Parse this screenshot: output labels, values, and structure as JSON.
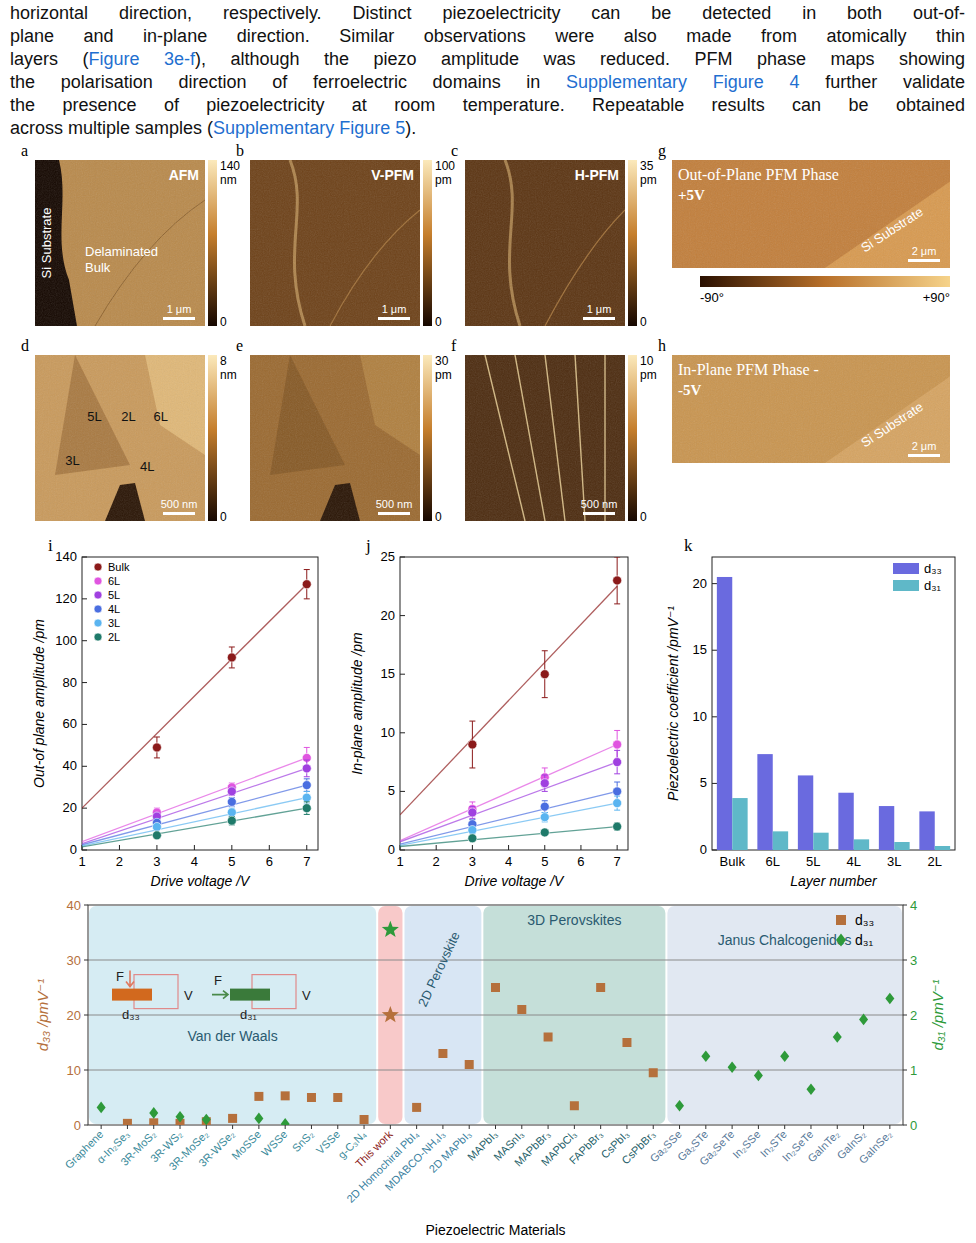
{
  "paragraph": {
    "lines": [
      [
        {
          "text": "horizontal direction, respectively. Distinct piezoelectricity can be detected in both out-of-"
        }
      ],
      [
        {
          "text": "plane and in-plane direction. Similar observations were also made from atomically thin"
        }
      ],
      [
        {
          "text": "layers ("
        },
        {
          "text": "Figure 3e-f",
          "link": true
        },
        {
          "text": "), although the piezo amplitude was reduced. PFM phase maps showing"
        }
      ],
      [
        {
          "text": "the polarisation direction of ferroelectric domains in "
        },
        {
          "text": "Supplementary Figure 4",
          "link": true
        },
        {
          "text": " further validate"
        }
      ],
      [
        {
          "text": "the presence of piezoelectricity at room temperature. Repeatable results can be obtained"
        }
      ],
      [
        {
          "text": "across multiple samples ("
        },
        {
          "text": "Supplementary Figure 5",
          "link": true
        },
        {
          "text": ")."
        }
      ]
    ]
  },
  "image_panels": [
    {
      "letter": "a",
      "title": "AFM",
      "labels": [
        "Si Substrate",
        "Delaminated Bulk"
      ],
      "colorbar": {
        "ticks": [
          0,
          140
        ],
        "unit": "nm"
      },
      "scale_bar": "1 μm"
    },
    {
      "letter": "b",
      "title": "V-PFM",
      "colorbar": {
        "ticks": [
          0,
          100
        ],
        "unit": "pm"
      },
      "scale_bar": "1 μm"
    },
    {
      "letter": "c",
      "title": "H-PFM",
      "colorbar": {
        "ticks": [
          0,
          35
        ],
        "unit": "pm"
      },
      "scale_bar": "1 μm"
    },
    {
      "letter": "d",
      "labels": [
        "5L",
        "2L",
        "6L",
        "3L",
        "4L"
      ],
      "colorbar": {
        "ticks": [
          0,
          8
        ],
        "unit": "nm"
      },
      "scale_bar": "500 nm"
    },
    {
      "letter": "e",
      "colorbar": {
        "ticks": [
          0,
          30
        ],
        "unit": "pm"
      },
      "scale_bar": "500 nm"
    },
    {
      "letter": "f",
      "colorbar": {
        "ticks": [
          0,
          10
        ],
        "unit": "pm"
      },
      "scale_bar": "500 nm"
    },
    {
      "letter": "g",
      "title": "Out-of-Plane PFM Phase",
      "subtitle": "+5V",
      "labels": [
        "Si Substrate"
      ],
      "scale_bar": "2 μm"
    },
    {
      "letter": "h",
      "title": "In-Plane PFM Phase -",
      "subtitle": "-5V",
      "labels": [
        "Si Substrate"
      ],
      "scale_bar": "2 μm"
    }
  ],
  "phase_colorbar": {
    "ticks": [
      {
        "value": -90,
        "label": "-90°"
      },
      {
        "value": 90,
        "label": "+90°"
      }
    ]
  },
  "chart_data": [
    {
      "label": "i",
      "type": "scatter",
      "marker": "circle",
      "xlabel": "Drive voltage /V",
      "ylabel": "Out-of plane amplitude /pm",
      "x": [
        3,
        5,
        7
      ],
      "fit_x": [
        1,
        7
      ],
      "xlim": [
        1,
        7.3
      ],
      "xticks": [
        1,
        2,
        3,
        4,
        5,
        6,
        7
      ],
      "ylim": [
        0,
        140
      ],
      "yticks": [
        0,
        20,
        40,
        60,
        80,
        100,
        120,
        140
      ],
      "legend": "upper left",
      "series": [
        {
          "name": "Bulk",
          "color": "#8b1a1a",
          "values": [
            49,
            92,
            127
          ],
          "errors": [
            5,
            5,
            7
          ],
          "fit_values": [
            20,
            127
          ]
        },
        {
          "name": "6L",
          "color": "#e055e0",
          "values": [
            18,
            30,
            44
          ],
          "errors": [
            2,
            2,
            5
          ],
          "fit_values": [
            4,
            44
          ]
        },
        {
          "name": "5L",
          "color": "#a040e0",
          "values": [
            16,
            28,
            39
          ],
          "errors": [
            2,
            2,
            4
          ],
          "fit_values": [
            3,
            39
          ]
        },
        {
          "name": "4L",
          "color": "#4a6ee0",
          "values": [
            13,
            23,
            31
          ],
          "errors": [
            2,
            2,
            3
          ],
          "fit_values": [
            2.5,
            31
          ]
        },
        {
          "name": "3L",
          "color": "#5ab4f0",
          "values": [
            11,
            18,
            25
          ],
          "errors": [
            1.5,
            2,
            3
          ],
          "fit_values": [
            2,
            25
          ]
        },
        {
          "name": "2L",
          "color": "#1f7a6a",
          "values": [
            7,
            14,
            20
          ],
          "errors": [
            1,
            2,
            3
          ],
          "fit_values": [
            1.5,
            20
          ]
        }
      ]
    },
    {
      "label": "j",
      "type": "scatter",
      "marker": "circle",
      "xlabel": "Drive voltage /V",
      "ylabel": "In-plane amplitude /pm",
      "x": [
        3,
        5,
        7
      ],
      "fit_x": [
        1,
        7
      ],
      "xlim": [
        1,
        7.3
      ],
      "xticks": [
        1,
        2,
        3,
        4,
        5,
        6,
        7
      ],
      "ylim": [
        0,
        25
      ],
      "yticks": [
        0,
        5,
        10,
        15,
        20,
        25
      ],
      "series": [
        {
          "color": "#8b1a1a",
          "values": [
            9,
            15,
            23
          ],
          "errors": [
            2,
            2,
            2
          ],
          "fit_values": [
            3,
            22.5
          ]
        },
        {
          "color": "#e055e0",
          "values": [
            3.5,
            6.2,
            9
          ],
          "errors": [
            0.6,
            0.8,
            1.2
          ],
          "fit_values": [
            0.8,
            9
          ]
        },
        {
          "color": "#a040e0",
          "values": [
            3.2,
            5.7,
            7.5
          ],
          "errors": [
            0.5,
            0.7,
            1
          ],
          "fit_values": [
            0.7,
            7.5
          ]
        },
        {
          "color": "#4a6ee0",
          "values": [
            2.2,
            3.7,
            5
          ],
          "errors": [
            0.4,
            0.5,
            0.8
          ],
          "fit_values": [
            0.5,
            5
          ]
        },
        {
          "color": "#5ab4f0",
          "values": [
            1.7,
            2.8,
            4
          ],
          "errors": [
            0.3,
            0.4,
            0.6
          ],
          "fit_values": [
            0.4,
            4
          ]
        },
        {
          "color": "#1f7a6a",
          "values": [
            1,
            1.5,
            2
          ],
          "errors": [
            0.2,
            0.2,
            0.3
          ],
          "fit_values": [
            0.3,
            2
          ]
        }
      ]
    },
    {
      "label": "k",
      "type": "bar",
      "xlabel": "Layer number",
      "ylabel": "Piezoelectric coefficient /pmV⁻¹",
      "categories": [
        "Bulk",
        "6L",
        "5L",
        "4L",
        "3L",
        "2L"
      ],
      "ylim": [
        0,
        22
      ],
      "yticks": [
        0,
        5,
        10,
        15,
        20
      ],
      "legend": "upper right",
      "series": [
        {
          "name": "d₃₃",
          "color": "#6a6adf",
          "values": [
            20.5,
            7.2,
            5.6,
            4.3,
            3.3,
            2.9
          ]
        },
        {
          "name": "d₃₁",
          "color": "#5fb8c8",
          "values": [
            3.9,
            1.4,
            1.3,
            0.8,
            0.6,
            0.3
          ]
        }
      ]
    },
    {
      "type": "scatter",
      "xlabel": "Piezoelectric Materials",
      "ylabel": "d₃₃ /pmV⁻¹",
      "y2label": "d₃₁ /pmV⁻¹",
      "categories": [
        "Graphene",
        "α-In₂Se₃",
        "3R-MoS₂",
        "3R-WS₂",
        "3R-MoSe₂",
        "3R-WSe₂",
        "MoSSe",
        "WSSe",
        "SnS₂",
        "VSSe",
        "g-C₃N₄",
        "This work",
        "2D Homochiral PbI₄",
        "MDABCO-NH₄I₃",
        "2D MAPbI₃",
        "MAPbI₃",
        "MASnI₃",
        "MAPbBr₃",
        "MAPbCl₃",
        "FAPbBr₃",
        "CsPbI₃",
        "CsPbBr₃",
        "Ga₂SSe",
        "Ga₂STe",
        "Ga₂SeTe",
        "In₂SSe",
        "In₂STe",
        "In₂SeTe",
        "GaInTe₂",
        "GaInS₂",
        "GaInSe₂"
      ],
      "ylim": [
        0,
        40
      ],
      "yticks": [
        0,
        10,
        20,
        30,
        40
      ],
      "y2lim": [
        0,
        4
      ],
      "y2ticks": [
        0,
        1,
        2,
        3,
        4
      ],
      "grid": true,
      "legend": "upper right",
      "series": [
        {
          "name": "d₃₃",
          "color": "#b5703c",
          "marker": "square",
          "values": [
            null,
            0.3,
            0.4,
            0.3,
            0.6,
            1.2,
            5.2,
            5.3,
            5,
            5,
            1,
            20,
            3.2,
            13,
            11,
            25,
            21,
            16,
            3.5,
            25,
            15,
            9.5,
            null,
            null,
            null,
            null,
            null,
            null,
            null,
            null,
            null
          ]
        },
        {
          "name": "d₃₁",
          "color": "#2e9a3a",
          "marker": "diamond",
          "axis": "y2",
          "values": [
            0.32,
            null,
            0.22,
            0.15,
            0.1,
            null,
            0.12,
            0.02,
            null,
            null,
            null,
            3.55,
            null,
            null,
            null,
            null,
            null,
            null,
            null,
            null,
            null,
            null,
            0.35,
            1.25,
            1.05,
            0.9,
            1.25,
            0.65,
            1.6,
            1.92,
            2.3
          ]
        }
      ],
      "groups": [
        {
          "label": "Van der Waals",
          "size": 11,
          "color": "#d6ecf3"
        },
        {
          "size": 1,
          "color": "#f8c9c9",
          "marker": "star"
        },
        {
          "label": "2D Perovskite",
          "size": 3,
          "color": "#d8e6f4"
        },
        {
          "label": "3D Perovskites",
          "size": 7,
          "color": "#c5dfd9"
        },
        {
          "label": "Janus Chalcogenides",
          "size": 9,
          "color": "#e1e8f2"
        }
      ],
      "schematics": [
        {
          "force": "F",
          "voltage": "V",
          "label": "d₃₃",
          "color": "#d2691e"
        },
        {
          "force": "F",
          "voltage": "V",
          "label": "d₃₁",
          "color": "#3a7a3a"
        }
      ]
    }
  ]
}
